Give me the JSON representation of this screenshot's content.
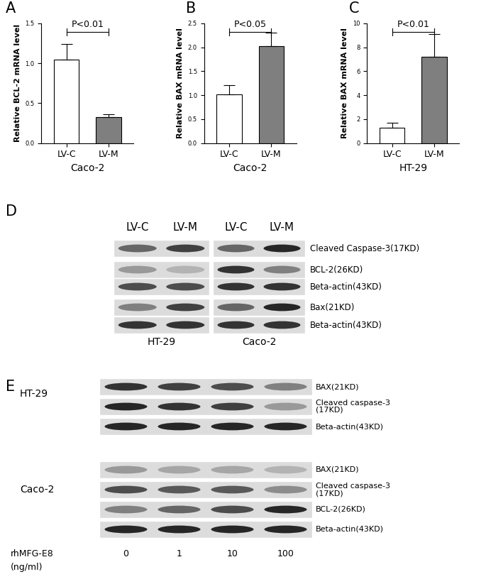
{
  "panel_labels": [
    "A",
    "B",
    "C",
    "D",
    "E"
  ],
  "chart_data": [
    {
      "type": "bar",
      "categories": [
        "LV-C",
        "LV-M"
      ],
      "values": [
        1.05,
        0.33
      ],
      "errors": [
        0.19,
        0.03
      ],
      "colors": [
        "#ffffff",
        "#7f7f7f"
      ],
      "y_label": "Relative BCL-2 mRNA level",
      "x_label": "Caco-2",
      "annotations": [
        "P<0.01"
      ],
      "ylim": [
        0,
        1.5
      ],
      "yticks": [
        {
          "value": 0,
          "label": "0.0"
        },
        {
          "value": 0.5,
          "label": "0.5"
        },
        {
          "value": 1.0,
          "label": "1.0"
        },
        {
          "value": 1.5,
          "label": "1.5"
        }
      ]
    },
    {
      "type": "bar",
      "categories": [
        "LV-C",
        "LV-M"
      ],
      "values": [
        1.02,
        2.03
      ],
      "errors": [
        0.19,
        0.27
      ],
      "colors": [
        "#ffffff",
        "#7f7f7f"
      ],
      "y_label": "Relative BAX mRNA level",
      "x_label": "Caco-2",
      "annotations": [
        "P<0.05"
      ],
      "ylim": [
        0,
        2.5
      ],
      "yticks": [
        {
          "value": 0,
          "label": "0.0"
        },
        {
          "value": 0.5,
          "label": "0.5"
        },
        {
          "value": 1.0,
          "label": "1.0"
        },
        {
          "value": 1.5,
          "label": "1.5"
        },
        {
          "value": 2.0,
          "label": "2.0"
        },
        {
          "value": 2.5,
          "label": "2.5"
        }
      ]
    },
    {
      "type": "bar",
      "categories": [
        "LV-C",
        "LV-M"
      ],
      "values": [
        1.3,
        7.2
      ],
      "errors": [
        0.4,
        1.9
      ],
      "colors": [
        "#ffffff",
        "#7f7f7f"
      ],
      "y_label": "Relative BAX mRNA level",
      "x_label": "HT-29",
      "annotations": [
        "P<0.01"
      ],
      "ylim": [
        0,
        10
      ],
      "yticks": [
        0,
        2,
        4,
        6,
        8,
        10
      ]
    }
  ],
  "blot_D": {
    "columns": [
      "LV-C",
      "LV-M",
      "LV-C",
      "LV-M"
    ],
    "cell_lines": [
      "HT-29",
      "Caco-2"
    ],
    "rows": [
      "Cleaved Caspase-3(17KD)",
      "BCL-2(26KD)",
      "Beta-actin(43KD)",
      "Bax(21KD)",
      "Beta-actin(43KD)"
    ]
  },
  "blot_E": {
    "blots": [
      {
        "cell_line": "HT-29",
        "rows": [
          "BAX(21KD)",
          "Cleaved caspase-3\n(17KD)",
          "Beta-actin(43KD)"
        ]
      },
      {
        "cell_line": "Caco-2",
        "rows": [
          "BAX(21KD)",
          "Cleaved caspase-3\n(17KD)",
          "BCL-2(26KD)",
          "Beta-actin(43KD)"
        ]
      }
    ],
    "treatment": "rhMFG-E8",
    "unit": "(ng/ml)",
    "doses": [
      0,
      1,
      10,
      100
    ]
  }
}
